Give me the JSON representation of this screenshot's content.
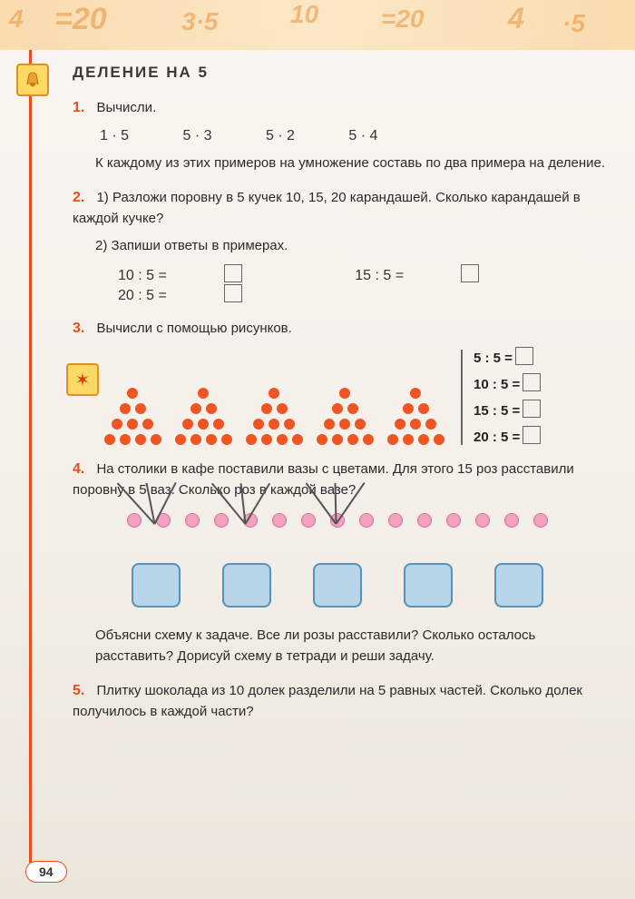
{
  "header": {
    "title": "ДЕЛЕНИЕ НА 5"
  },
  "top_bg": [
    "4",
    "·",
    "20",
    "·5",
    "10",
    "÷",
    "=",
    "20",
    "4"
  ],
  "p1": {
    "num": "1.",
    "label": "Вычисли.",
    "expressions": [
      "1 · 5",
      "5 · 3",
      "5 · 2",
      "5 · 4"
    ],
    "note": "К каждому из этих примеров на умножение составь по два примера на деление."
  },
  "p2": {
    "num": "2.",
    "part1": "1) Разложи поровну в 5 кучек 10, 15, 20 карандашей. Сколько карандашей в каждой кучке?",
    "part2": "2) Запиши ответы в примерах.",
    "eqs": [
      "10 : 5 =",
      "15 : 5 =",
      "20 : 5 ="
    ]
  },
  "p3": {
    "num": "3.",
    "label": "Вычисли с помощью рисунков.",
    "dot_color": "#ee5522",
    "groups": 5,
    "rows_per_group": [
      1,
      2,
      3,
      4
    ],
    "eq_col": [
      "5 : 5 =",
      "10 : 5 =",
      "15 : 5 =",
      "20 : 5 ="
    ]
  },
  "p4": {
    "num": "4.",
    "text": "На столики в кафе поставили вазы с цветами. Для этого 15 роз расставили поровну в 5 ваз. Сколько роз в каждой вазе?",
    "rose_color": "#f4a0c0",
    "vase_color": "#b8d4e8",
    "vase_border": "#5890b8",
    "roses_total": 15,
    "vases": 5,
    "roses_placed_per_vase": 3,
    "vases_with_roses": 3,
    "followup": "Объясни схему к задаче. Все ли розы расставили? Сколько осталось расставить? Дорисуй схему в тетради и реши задачу."
  },
  "p5": {
    "num": "5.",
    "text": "Плитку шоколада из 10 долек разделили на 5 равных частей. Сколько долек получилось в каждой части?"
  },
  "page_number": "94",
  "colors": {
    "accent": "#e84c1a",
    "text": "#2a2a2a",
    "icon_bg": "#ffd966"
  }
}
